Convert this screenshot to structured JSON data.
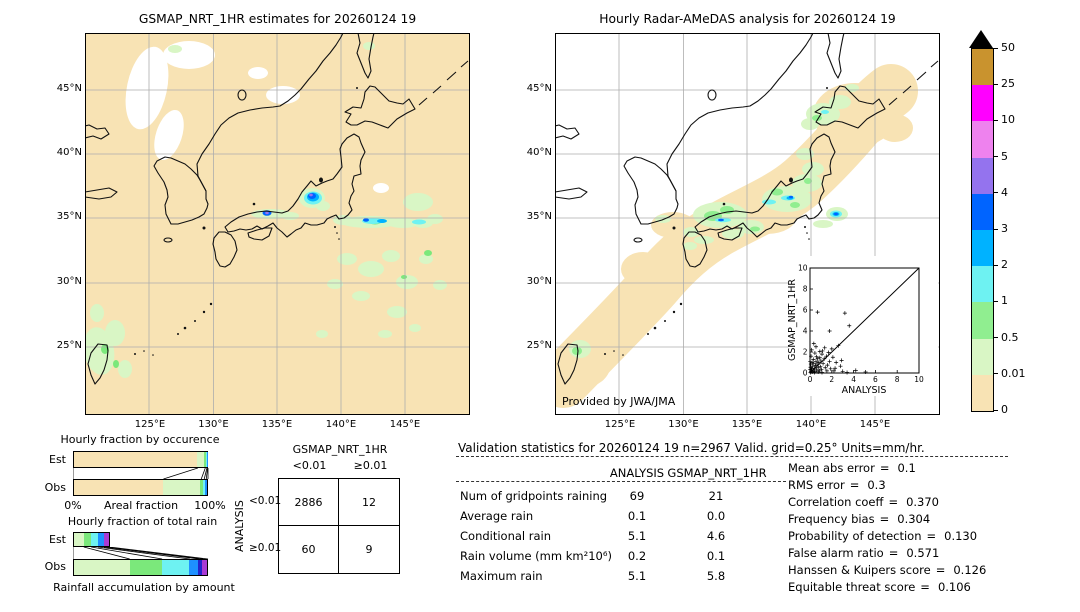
{
  "maps": {
    "left": {
      "title": "GSMAP_NRT_1HR estimates for 20260124 19",
      "lat_ticks": [
        "45°N",
        "40°N",
        "35°N",
        "30°N",
        "25°N"
      ],
      "lon_ticks": [
        "125°E",
        "130°E",
        "135°E",
        "140°E",
        "145°E"
      ]
    },
    "right": {
      "title": "Hourly Radar-AMeDAS analysis for 20260124 19",
      "credit": "Provided by JWA/JMA",
      "lat_ticks": [
        "45°N",
        "40°N",
        "35°N",
        "30°N",
        "25°N"
      ],
      "lon_ticks": [
        "125°E",
        "130°E",
        "135°E",
        "140°E",
        "145°E"
      ]
    }
  },
  "ui": {
    "separator": "="
  },
  "scores": [
    {
      "label": "Mean abs error",
      "value": "0.1"
    },
    {
      "label": "RMS error",
      "value": "0.3"
    },
    {
      "label": "Correlation coeff",
      "value": "0.370"
    },
    {
      "label": "Frequency bias",
      "value": "0.304"
    },
    {
      "label": "Probability of detection",
      "value": "0.130"
    },
    {
      "label": "False alarm ratio",
      "value": "0.571"
    },
    {
      "label": "Hanssen & Kuipers score",
      "value": "0.126"
    },
    {
      "label": "Equitable threat score",
      "value": "0.106"
    }
  ],
  "chart_data": [
    {
      "id": "occurrence",
      "type": "bar",
      "subtype": "stacked-horizontal",
      "title": "Hourly fraction by occurence",
      "categories": [
        "Est",
        "Obs"
      ],
      "xlabel": "Areal fraction",
      "xtick_labels": [
        "0%",
        "100%"
      ],
      "class_colors": [
        "#f8e3b4",
        "#d9f6c5",
        "#7be87b",
        "#6ef2f2",
        "#1e90ff"
      ],
      "series": [
        {
          "name": "Est",
          "values": [
            92.5,
            5.5,
            1.2,
            0.5,
            0.3
          ]
        },
        {
          "name": "Obs",
          "values": [
            67,
            28,
            2.2,
            1.5,
            1.3
          ]
        }
      ],
      "xlim": [
        0,
        100
      ]
    },
    {
      "id": "total-rain",
      "type": "bar",
      "subtype": "stacked-horizontal",
      "title": "Hourly fraction of total rain",
      "xlabel": "Rainfall accumulation by amount",
      "categories": [
        "Est",
        "Obs"
      ],
      "class_colors": [
        "#d9f6c5",
        "#7be87b",
        "#6ef2f2",
        "#1e90ff",
        "#2323cc",
        "#a93ad4"
      ],
      "series": [
        {
          "name": "Est",
          "values": [
            8,
            5.5,
            5,
            4.5,
            0,
            4
          ]
        },
        {
          "name": "Obs",
          "values": [
            42,
            24,
            20.5,
            7,
            3,
            3.5
          ]
        }
      ],
      "xlim": [
        0,
        100
      ]
    },
    {
      "id": "contingency",
      "type": "table",
      "col_group": "GSMAP_NRT_1HR",
      "row_group": "ANALYSIS",
      "columns": [
        "<0.01",
        "≥0.01"
      ],
      "rows": [
        "<0.01",
        "≥0.01"
      ],
      "values": [
        [
          "2886",
          "12"
        ],
        [
          "60",
          "9"
        ]
      ]
    },
    {
      "id": "validation-stats",
      "type": "table",
      "title": "Validation statistics for 20260124 19  n=2967 Valid. grid=0.25° Units=mm/hr.",
      "columns": [
        "ANALYSIS",
        "GSMAP_NRT_1HR"
      ],
      "rows": [
        [
          "Num of gridpoints raining",
          "69",
          "21"
        ],
        [
          "Average rain",
          "0.1",
          "0.0"
        ],
        [
          "Conditional rain",
          "5.1",
          "4.6"
        ],
        [
          "Rain volume (mm km²10⁶)",
          "0.2",
          "0.1"
        ],
        [
          "Maximum rain",
          "5.1",
          "5.8"
        ]
      ]
    },
    {
      "id": "inset-scatter",
      "type": "scatter",
      "xlabel": "ANALYSIS",
      "ylabel": "GSMAP_NRT_1HR",
      "xlim": [
        0,
        10
      ],
      "ylim": [
        0,
        10
      ],
      "xticks": [
        0,
        2,
        4,
        6,
        8,
        10
      ],
      "yticks": [
        0,
        2,
        4,
        6,
        8,
        10
      ],
      "diagonal": true,
      "points": [
        [
          0.05,
          0.05
        ],
        [
          0.1,
          0.15
        ],
        [
          0.15,
          0.4
        ],
        [
          0.2,
          0.1
        ],
        [
          0.25,
          0.65
        ],
        [
          0.3,
          0.2
        ],
        [
          0.35,
          0.9
        ],
        [
          0.4,
          0.45
        ],
        [
          0.45,
          0.15
        ],
        [
          0.5,
          0.7
        ],
        [
          0.55,
          1.1
        ],
        [
          0.6,
          0.3
        ],
        [
          0.65,
          0.85
        ],
        [
          0.7,
          1.35
        ],
        [
          0.75,
          0.5
        ],
        [
          0.8,
          1.0
        ],
        [
          0.85,
          0.2
        ],
        [
          0.9,
          1.45
        ],
        [
          0.95,
          0.6
        ],
        [
          1.0,
          1.15
        ],
        [
          1.05,
          0.35
        ],
        [
          1.1,
          1.8
        ],
        [
          1.2,
          0.9
        ],
        [
          1.3,
          1.35
        ],
        [
          1.4,
          0.5
        ],
        [
          1.5,
          1.6
        ],
        [
          1.6,
          0.75
        ],
        [
          1.7,
          1.95
        ],
        [
          1.8,
          1.1
        ],
        [
          1.9,
          0.4
        ],
        [
          2.0,
          2.3
        ],
        [
          2.1,
          1.5
        ],
        [
          2.2,
          0.2
        ],
        [
          2.4,
          1.0
        ],
        [
          2.6,
          2.6
        ],
        [
          2.8,
          0.65
        ],
        [
          3.0,
          0.15
        ],
        [
          3.2,
          5.7
        ],
        [
          3.6,
          4.5
        ],
        [
          1.8,
          4.0
        ],
        [
          0.7,
          5.8
        ],
        [
          0.35,
          2.8
        ],
        [
          0.15,
          2.2
        ],
        [
          0.55,
          2.5
        ],
        [
          1.15,
          2.1
        ],
        [
          5.1,
          0.1
        ],
        [
          4.2,
          0.25
        ],
        [
          0.1,
          1.6
        ],
        [
          0.2,
          1.0
        ],
        [
          0.05,
          0.55
        ],
        [
          0.3,
          1.3
        ],
        [
          0.45,
          1.9
        ],
        [
          0.08,
          0.85
        ],
        [
          0.6,
          1.55
        ],
        [
          1.35,
          2.4
        ],
        [
          0.9,
          2.05
        ],
        [
          2.9,
          1.2
        ],
        [
          0.12,
          0.3
        ],
        [
          0.4,
          0.05
        ],
        [
          0.75,
          0.1
        ],
        [
          1.1,
          0.05
        ],
        [
          1.55,
          0.2
        ],
        [
          2.3,
          0.45
        ],
        [
          0.02,
          1.1
        ],
        [
          0.02,
          0.35
        ],
        [
          3.4,
          0.05
        ]
      ]
    },
    {
      "id": "colorbar",
      "type": "heatmap-scale",
      "tick_labels": [
        "50",
        "25",
        "10",
        "5",
        "4",
        "3",
        "2",
        "1",
        "0.5",
        "0.01",
        "0"
      ],
      "colors_top_to_bottom": [
        "#c9932e",
        "#ff00ff",
        "#ee82ee",
        "#9473ee",
        "#0064ff",
        "#00b2ff",
        "#6ef2f2",
        "#90ee90",
        "#d9f6c5",
        "#f8e3b4"
      ],
      "overflow_marker": "black triangle (>50)"
    }
  ]
}
